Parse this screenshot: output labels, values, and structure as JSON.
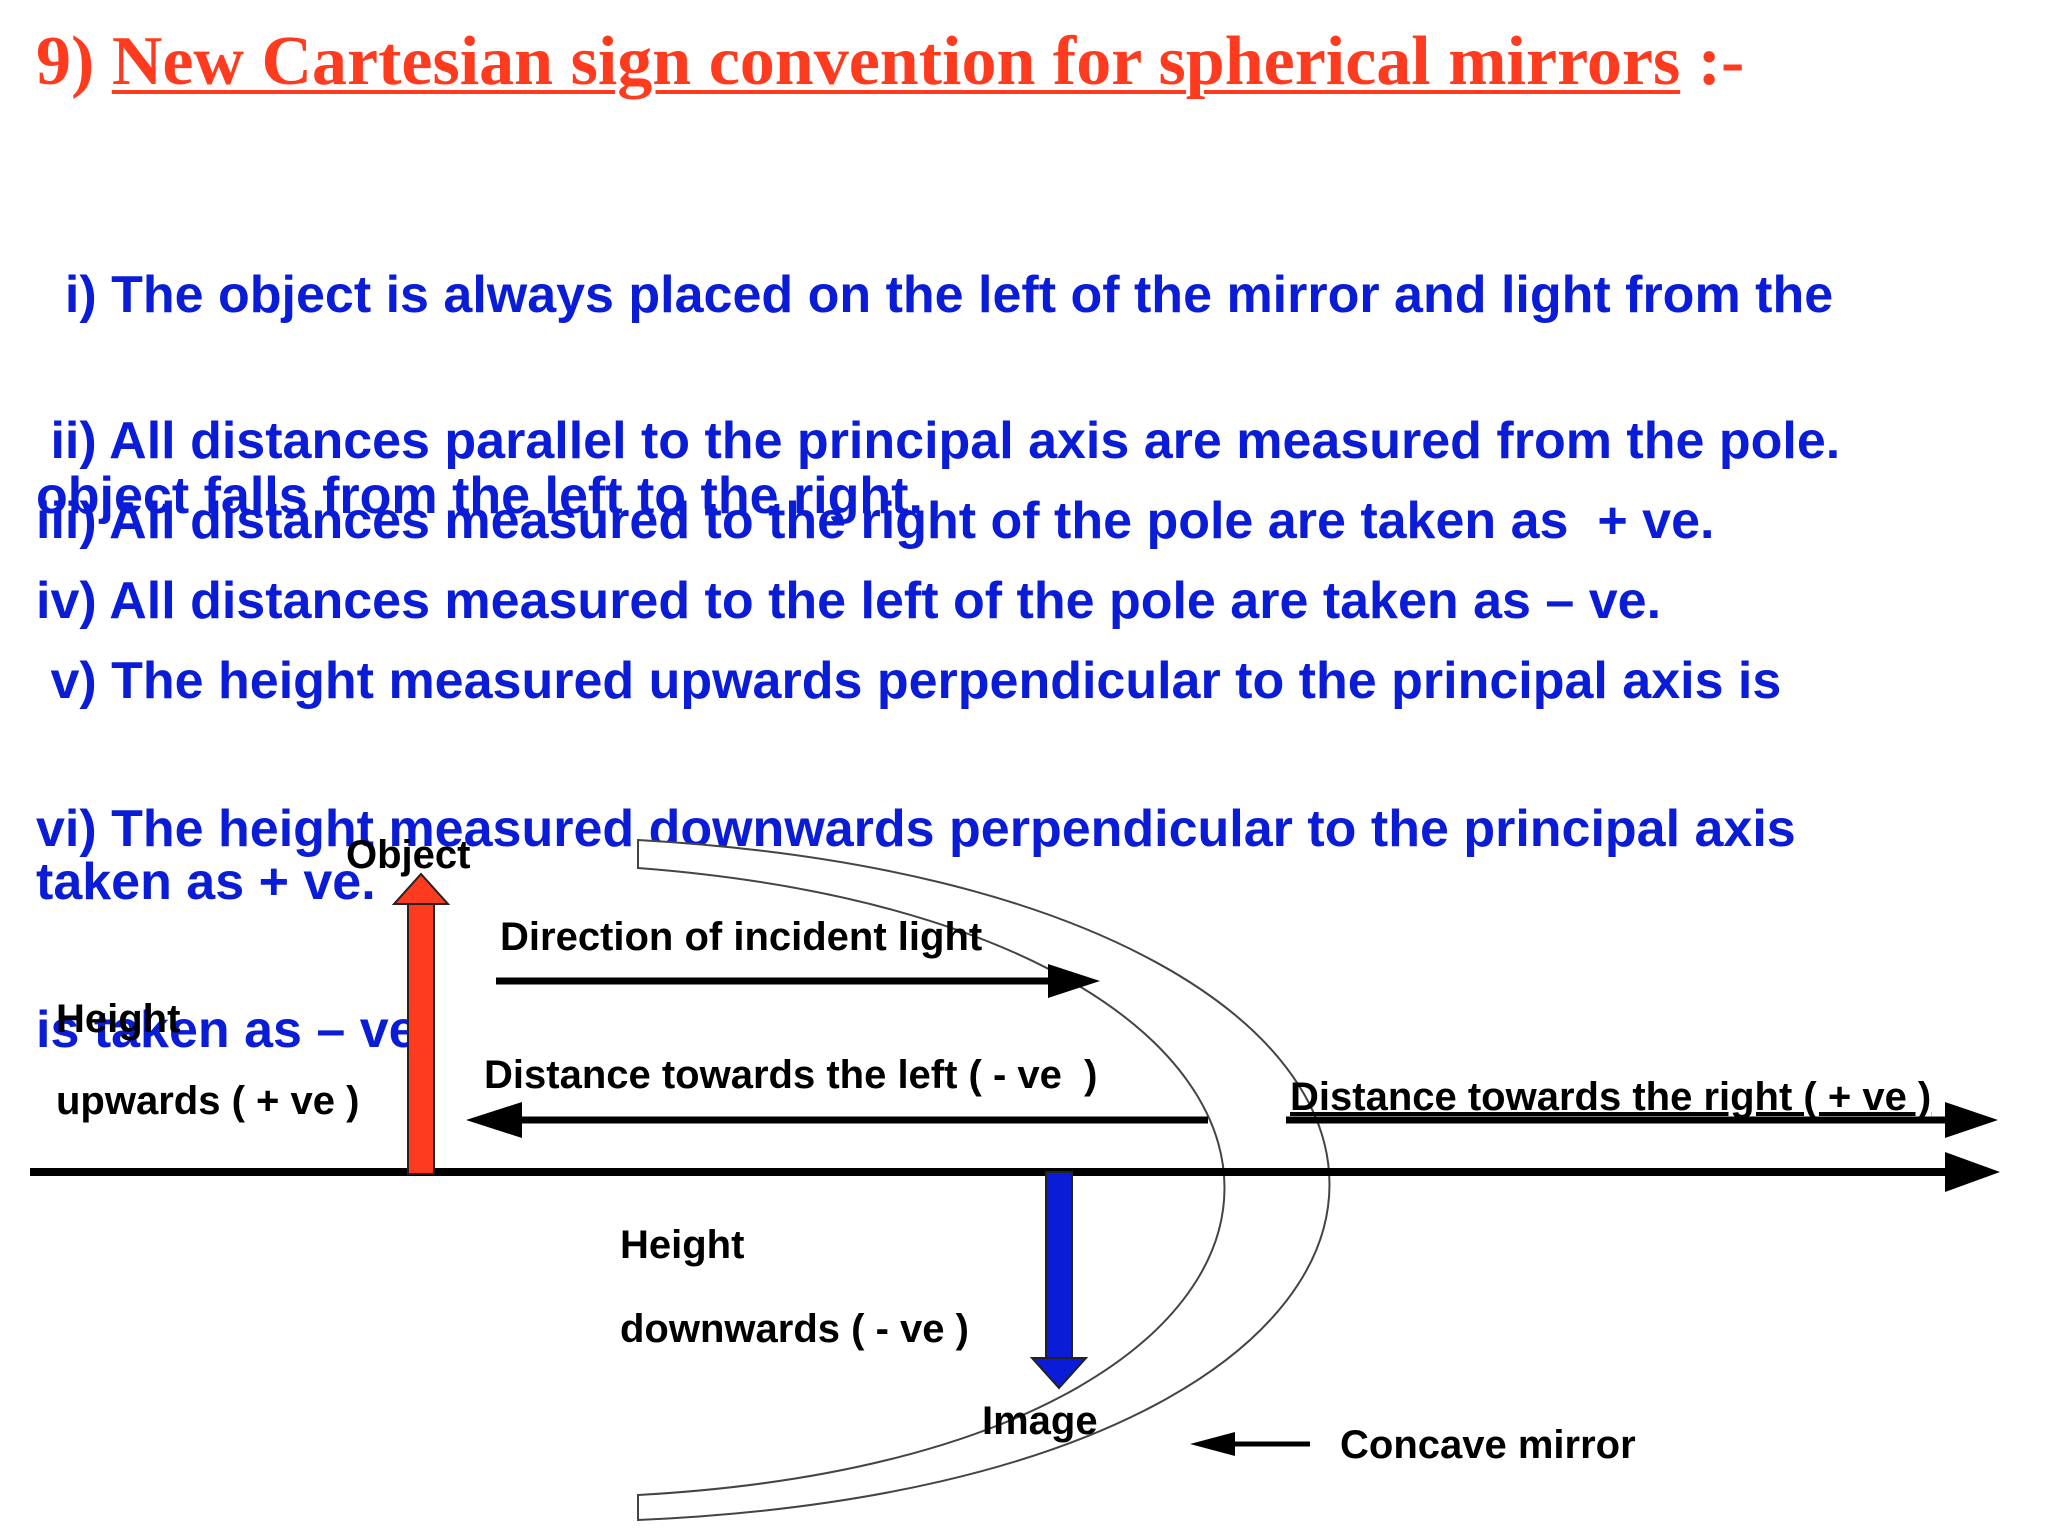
{
  "title": {
    "number": "9)",
    "text": "New Cartesian sign convention for spherical mirrors",
    "suffix": ":-"
  },
  "rules": [
    {
      "line1": "  i) The object is always placed on the left of the mirror and light from the",
      "line2": "object falls from the left to the right."
    },
    {
      "line1": " ii) All distances parallel to the principal axis are measured from the pole."
    },
    {
      "line1": "iii) All distances measured to the right of the pole are taken as  + ve."
    },
    {
      "line1": "iv) All distances measured to the left of the pole are taken as – ve."
    },
    {
      "line1": " v) The height measured upwards perpendicular to the principal axis is",
      "line2": "taken as + ve."
    },
    {
      "line1": "vi) The height measured downwards perpendicular to the principal axis",
      "line2": "is taken as – ve."
    }
  ],
  "diagram": {
    "object_label": "Object",
    "incident_label": "Direction of incident light",
    "height_up_line1": "Height",
    "height_up_line2": "upwards ( + ve )",
    "left_label": "Distance towards the left ( - ve  )",
    "right_label": "Distance towards the right ( + ve )",
    "height_down_line1": "Height",
    "height_down_line2": "downwards ( - ve )",
    "image_label": "Image",
    "mirror_label": "Concave mirror",
    "colors": {
      "object_arrow": "#ff3b1f",
      "image_arrow": "#0a1cd6",
      "lines": "#000000"
    }
  }
}
